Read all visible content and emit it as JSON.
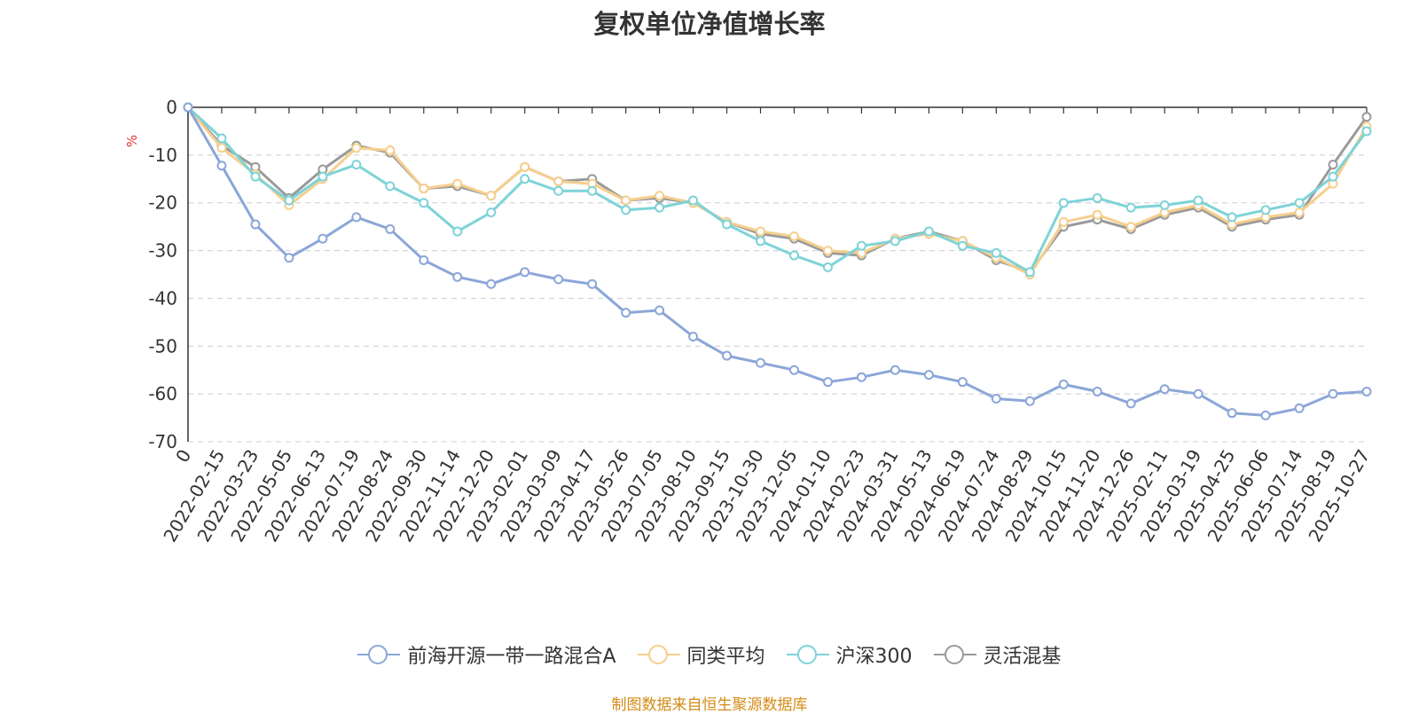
{
  "chart_data": {
    "type": "line",
    "title": "复权单位净值增长率",
    "unit": "%",
    "ylabel": "%",
    "ylim": [
      -70,
      0
    ],
    "yticks": [
      "0",
      "-10",
      "-20",
      "-30",
      "-40",
      "-50",
      "-60",
      "-70"
    ],
    "grid": true,
    "legend_position": "bottom",
    "x": [
      "0",
      "2022-02-15",
      "2022-03-23",
      "2022-05-05",
      "2022-06-13",
      "2022-07-19",
      "2022-08-24",
      "2022-09-30",
      "2022-11-14",
      "2022-12-20",
      "2023-02-01",
      "2023-03-09",
      "2023-04-17",
      "2023-05-26",
      "2023-07-05",
      "2023-08-10",
      "2023-09-15",
      "2023-10-30",
      "2023-12-05",
      "2024-01-10",
      "2024-02-23",
      "2024-03-31",
      "2024-05-13",
      "2024-06-19",
      "2024-07-24",
      "2024-08-29",
      "2024-10-15",
      "2024-11-20",
      "2024-12-26",
      "2025-02-11",
      "2025-03-19",
      "2025-04-25",
      "2025-06-06",
      "2025-07-14",
      "2025-08-19",
      "2025-10-27"
    ],
    "series": [
      {
        "name": "前海开源一带一路混合A",
        "color": "#8ba6d8",
        "values": [
          0,
          -12.2,
          -24.5,
          -31.5,
          -27.5,
          -23.0,
          -25.5,
          -32.0,
          -35.5,
          -37.0,
          -34.5,
          -36.0,
          -37.0,
          -43.0,
          -42.5,
          -48.0,
          -52.0,
          -53.5,
          -55.0,
          -57.5,
          -56.5,
          -55.0,
          -56.0,
          -57.5,
          -61.0,
          -61.5,
          -58.0,
          -59.5,
          -62.0,
          -59.0,
          -60.0,
          -64.0,
          -64.5,
          -63.0,
          -60.0,
          -59.5
        ]
      },
      {
        "name": "同类平均",
        "color": "#f5cf8e",
        "values": [
          0,
          -8.5,
          -14.0,
          -20.5,
          -15.0,
          -8.5,
          -9.0,
          -17.0,
          -16.0,
          -18.5,
          -12.5,
          -15.5,
          -16.0,
          -19.5,
          -18.5,
          -20.0,
          -24.0,
          -26.0,
          -27.0,
          -30.0,
          -30.5,
          -27.5,
          -26.5,
          -28.0,
          -31.5,
          -35.0,
          -24.0,
          -22.5,
          -25.0,
          -22.0,
          -20.5,
          -24.5,
          -23.0,
          -22.0,
          -16.0,
          -4.0
        ]
      },
      {
        "name": "沪深300",
        "color": "#7dd3d8",
        "values": [
          0,
          -6.5,
          -14.5,
          -19.5,
          -14.5,
          -12.0,
          -16.5,
          -20.0,
          -26.0,
          -22.0,
          -15.0,
          -17.5,
          -17.5,
          -21.5,
          -21.0,
          -19.5,
          -24.5,
          -28.0,
          -31.0,
          -33.5,
          -29.0,
          -28.0,
          -26.0,
          -29.0,
          -30.5,
          -34.5,
          -20.0,
          -19.0,
          -21.0,
          -20.5,
          -19.5,
          -23.0,
          -21.5,
          -20.0,
          -14.5,
          -5.0
        ]
      },
      {
        "name": "灵活混基",
        "color": "#9a9a9a",
        "values": [
          0,
          -8.0,
          -12.5,
          -19.0,
          -13.0,
          -8.0,
          -9.5,
          -17.0,
          -16.5,
          -18.5,
          -12.5,
          -15.5,
          -15.0,
          -19.5,
          -19.0,
          -20.0,
          -24.0,
          -26.5,
          -27.5,
          -30.5,
          -31.0,
          -27.5,
          -26.0,
          -28.0,
          -32.0,
          -34.5,
          -25.0,
          -23.5,
          -25.5,
          -22.5,
          -21.0,
          -25.0,
          -23.5,
          -22.5,
          -12.0,
          -2.0
        ]
      }
    ]
  },
  "source_text": "制图数据来自恒生聚源数据库"
}
